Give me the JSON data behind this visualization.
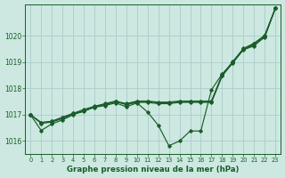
{
  "xlabel": "Graphe pression niveau de la mer (hPa)",
  "bg_color": "#cce8e0",
  "grid_color": "#aacccc",
  "line_color": "#1a5c2a",
  "ylim": [
    1015.5,
    1021.2
  ],
  "xlim": [
    -0.5,
    23.5
  ],
  "yticks": [
    1016,
    1017,
    1018,
    1019,
    1020
  ],
  "xticks": [
    0,
    1,
    2,
    3,
    4,
    5,
    6,
    7,
    8,
    9,
    10,
    11,
    12,
    13,
    14,
    15,
    16,
    17,
    18,
    19,
    20,
    21,
    22,
    23
  ],
  "line1_x": [
    0,
    1,
    2,
    3,
    4,
    5,
    6,
    7,
    8,
    9,
    10,
    11,
    12,
    13,
    14,
    15,
    16,
    17,
    18,
    19,
    20,
    21,
    22,
    23
  ],
  "line1_y": [
    1017.0,
    1016.4,
    1016.65,
    1016.8,
    1017.0,
    1017.15,
    1017.28,
    1017.35,
    1017.45,
    1017.3,
    1017.45,
    1017.1,
    1016.6,
    1015.82,
    1016.0,
    1016.38,
    1016.38,
    1017.95,
    1018.55,
    1018.98,
    1019.5,
    1019.65,
    1019.95,
    1021.05
  ],
  "line2_x": [
    0,
    1,
    2,
    3,
    4,
    5,
    6,
    7,
    8,
    9,
    10,
    11,
    12,
    13,
    14,
    15,
    16,
    17,
    18,
    19,
    20,
    21,
    22,
    23
  ],
  "line2_y": [
    1017.0,
    1016.67,
    1016.72,
    1016.85,
    1017.02,
    1017.12,
    1017.3,
    1017.38,
    1017.5,
    1017.38,
    1017.47,
    1017.47,
    1017.42,
    1017.42,
    1017.47,
    1017.47,
    1017.47,
    1017.47,
    1018.47,
    1018.97,
    1019.47,
    1019.62,
    1019.97,
    1021.05
  ],
  "line3_x": [
    0,
    1,
    2,
    3,
    4,
    5,
    6,
    7,
    8,
    9,
    10,
    11,
    12,
    13,
    14,
    15,
    16,
    17,
    18,
    19,
    20,
    21,
    22,
    23
  ],
  "line3_y": [
    1017.0,
    1016.7,
    1016.75,
    1016.9,
    1017.05,
    1017.15,
    1017.3,
    1017.4,
    1017.5,
    1017.4,
    1017.5,
    1017.5,
    1017.45,
    1017.45,
    1017.5,
    1017.5,
    1017.5,
    1017.5,
    1018.5,
    1019.0,
    1019.5,
    1019.7,
    1020.0,
    1021.05
  ],
  "line4_x": [
    0,
    1,
    2,
    3,
    4,
    5,
    6,
    7,
    8,
    9,
    10,
    11,
    12,
    13,
    14,
    15,
    16,
    17,
    18,
    19,
    20,
    21,
    22,
    23
  ],
  "line4_y": [
    1017.0,
    1016.7,
    1016.75,
    1016.9,
    1017.05,
    1017.2,
    1017.32,
    1017.42,
    1017.52,
    1017.42,
    1017.52,
    1017.52,
    1017.48,
    1017.48,
    1017.52,
    1017.52,
    1017.52,
    1017.52,
    1018.52,
    1019.02,
    1019.52,
    1019.72,
    1020.02,
    1021.05
  ]
}
